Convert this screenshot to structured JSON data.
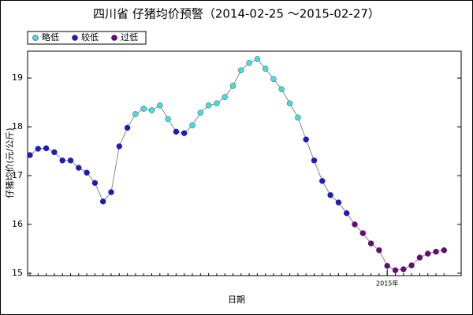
{
  "chart_data": {
    "type": "line",
    "title": "四川省 仔猪均价预警（2014-02-25 ～2015-02-27）",
    "x_label": "日期",
    "y_label": "仔猪均价(元/公斤)",
    "legend": [
      {
        "name": "略低",
        "color": "#40e0e0"
      },
      {
        "name": "较低",
        "color": "#1a1acc"
      },
      {
        "name": "过低",
        "color": "#6a0a7a"
      }
    ],
    "line_color": "#888888",
    "categories": [
      null,
      null,
      null,
      null,
      null,
      null,
      null,
      null,
      null,
      null,
      null,
      null,
      null,
      null,
      null,
      null,
      null,
      null,
      null,
      null,
      null,
      null,
      null,
      null,
      null,
      null,
      null,
      null,
      null,
      null,
      null,
      null,
      null,
      null,
      null,
      null,
      null,
      null,
      null,
      null,
      null,
      null,
      null,
      null,
      "2015年",
      null,
      null,
      null,
      null,
      null,
      null,
      null
    ],
    "values": [
      17.42,
      17.55,
      17.56,
      17.48,
      17.31,
      17.31,
      17.16,
      17.06,
      16.85,
      16.47,
      16.66,
      17.6,
      17.98,
      18.26,
      18.37,
      18.34,
      18.44,
      18.16,
      17.9,
      17.87,
      18.03,
      18.29,
      18.44,
      18.48,
      18.61,
      18.84,
      19.16,
      19.31,
      19.39,
      19.19,
      18.98,
      18.77,
      18.48,
      18.19,
      17.74,
      17.31,
      16.89,
      16.6,
      16.45,
      16.23,
      16.0,
      15.82,
      15.61,
      15.47,
      15.15,
      15.06,
      15.08,
      15.16,
      15.32,
      15.4,
      15.44,
      15.47
    ],
    "levels": [
      1,
      1,
      1,
      1,
      1,
      1,
      1,
      1,
      1,
      1,
      1,
      1,
      1,
      0,
      0,
      0,
      0,
      0,
      1,
      1,
      0,
      0,
      0,
      0,
      0,
      0,
      0,
      0,
      0,
      0,
      0,
      0,
      0,
      0,
      1,
      1,
      1,
      1,
      1,
      1,
      2,
      2,
      2,
      2,
      2,
      2,
      2,
      2,
      2,
      2,
      2,
      2
    ],
    "ylim": [
      14.95,
      19.55
    ],
    "yticks": [
      15,
      16,
      17,
      18,
      19
    ]
  }
}
